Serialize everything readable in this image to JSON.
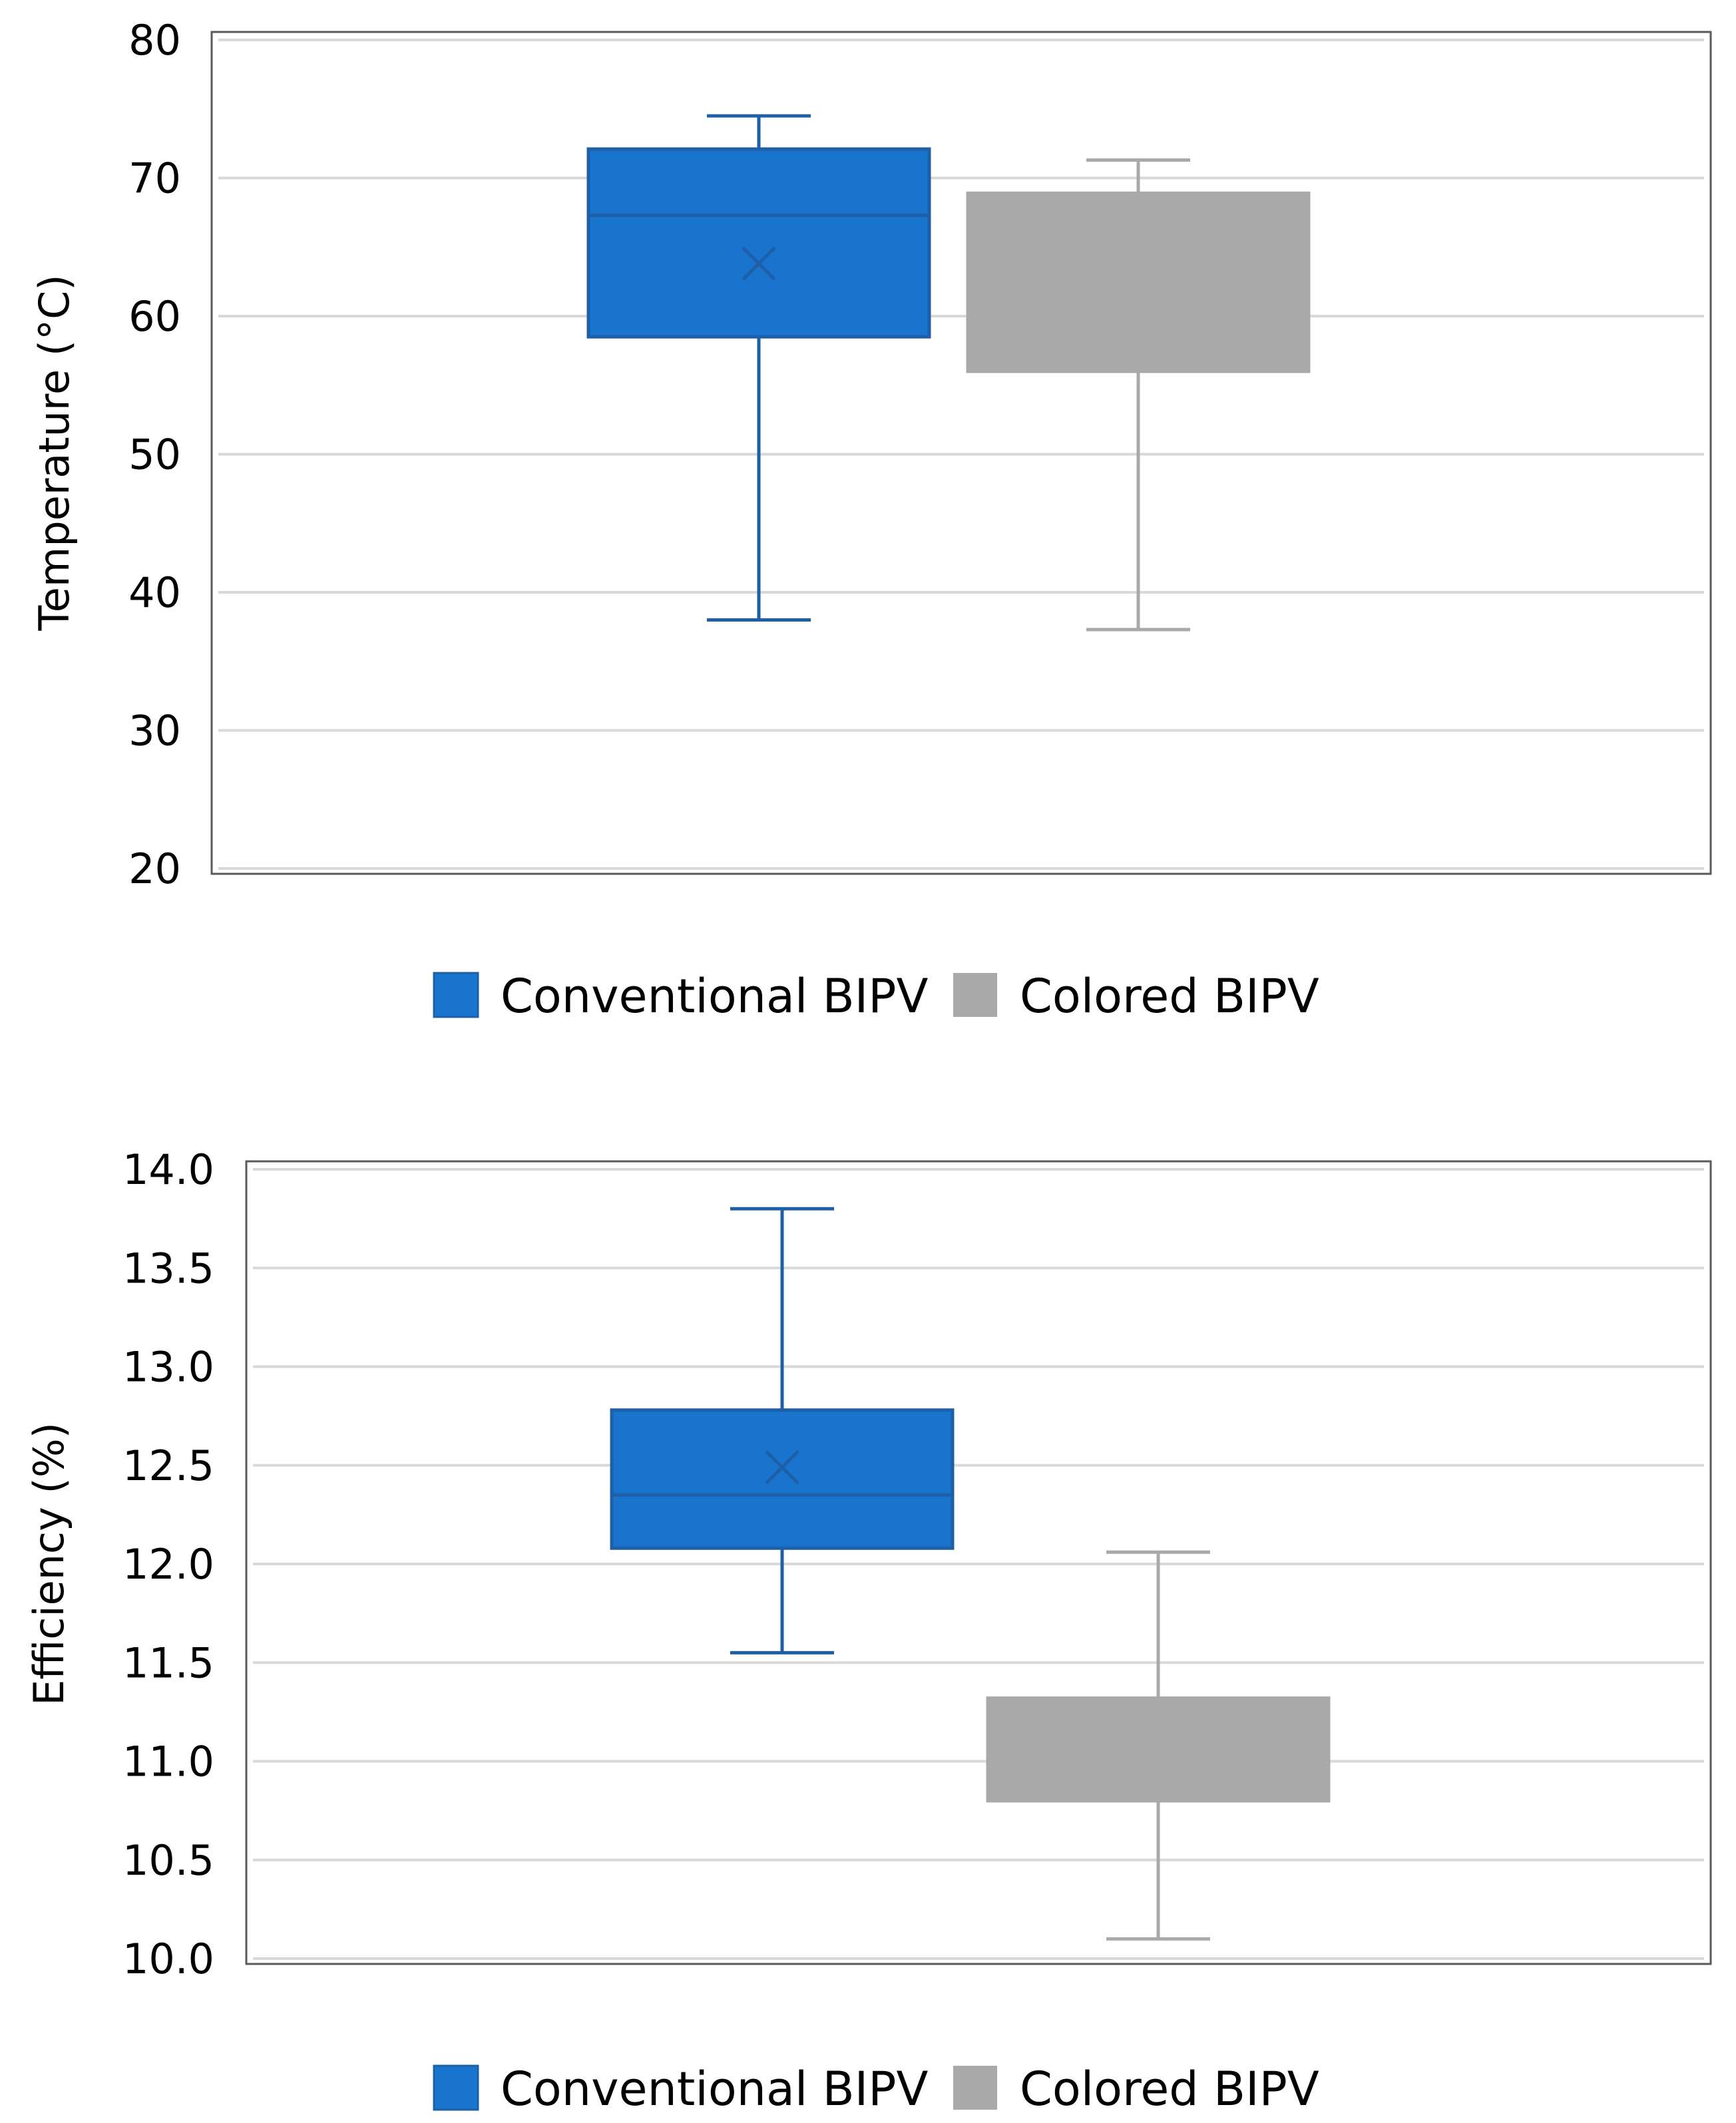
{
  "chart_data": [
    {
      "type": "box",
      "title": "",
      "xlabel": "",
      "ylabel": "Temperature (°C)",
      "ylim": [
        20,
        80
      ],
      "yticks": [
        20,
        30,
        40,
        50,
        60,
        70,
        80
      ],
      "ytick_labels": [
        "20",
        "30",
        "40",
        "50",
        "60",
        "70",
        "80"
      ],
      "grid": true,
      "legend_position": "bottom",
      "series": [
        {
          "name": "Conventional BIPV",
          "color": "#1874CD",
          "edge_color": "#1F5FA8",
          "min": 38,
          "q1": 58.5,
          "median": 67.3,
          "q3": 72.1,
          "max": 74.5,
          "mean": 63.8
        },
        {
          "name": "Colored BIPV",
          "color": "#A9A9A9",
          "edge_color": "#A9A9A9",
          "min": 37.3,
          "q1": 56,
          "median": 56,
          "q3": 68.9,
          "max": 71.3,
          "mean": null
        }
      ]
    },
    {
      "type": "box",
      "title": "",
      "xlabel": "",
      "ylabel": "Efficiency (%)",
      "ylim": [
        10.0,
        14.0
      ],
      "yticks": [
        10.0,
        10.5,
        11.0,
        11.5,
        12.0,
        12.5,
        13.0,
        13.5,
        14.0
      ],
      "ytick_labels": [
        "10.0",
        "10.5",
        "11.0",
        "11.5",
        "12.0",
        "12.5",
        "13.0",
        "13.5",
        "14.0"
      ],
      "grid": true,
      "legend_position": "bottom",
      "series": [
        {
          "name": "Conventional BIPV",
          "color": "#1874CD",
          "edge_color": "#1F5FA8",
          "min": 11.55,
          "q1": 12.08,
          "median": 12.35,
          "q3": 12.78,
          "max": 13.8,
          "mean": 12.49
        },
        {
          "name": "Colored BIPV",
          "color": "#A9A9A9",
          "edge_color": "#A9A9A9",
          "min": 10.1,
          "q1": 10.8,
          "median": 10.8,
          "q3": 11.32,
          "max": 12.06,
          "mean": null
        }
      ]
    }
  ]
}
